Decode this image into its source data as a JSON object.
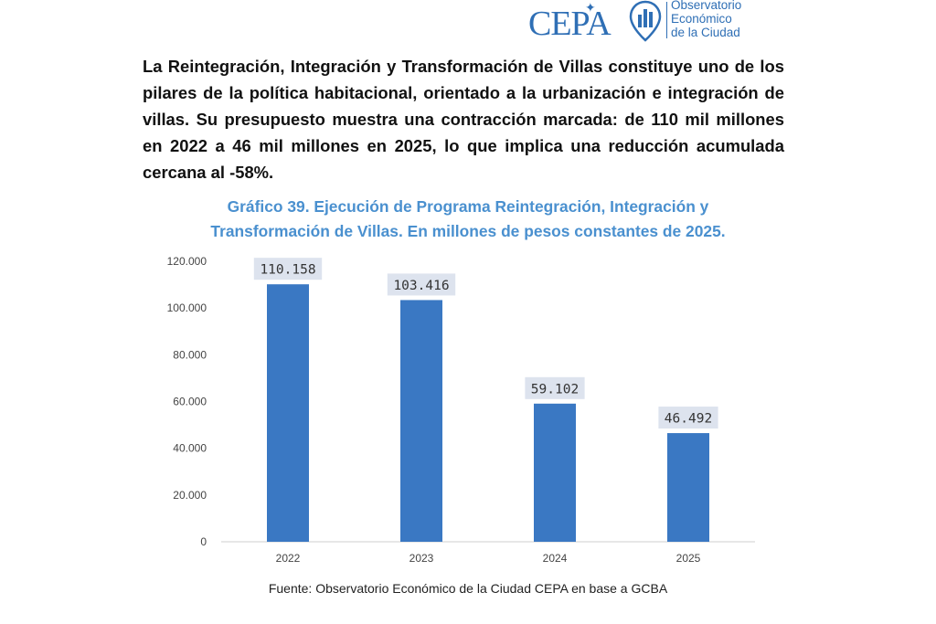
{
  "header": {
    "cepa_logo": "CEPA",
    "observatorio_logo_lines": [
      "Observatorio",
      "Económico",
      "de la Ciudad"
    ]
  },
  "intro_text": "La Reintegración, Integración y Transformación de Villas constituye uno de los pilares de la política habitacional, orientado a la urbanización e integración de villas. Su presupuesto muestra una contracción marcada: de 110 mil millones en 2022 a 46 mil millones en 2025, lo que implica una reducción acumulada cercana al -58%.",
  "chart_title_line1": "Gráfico 39. Ejecución de Programa Reintegración, Integración y",
  "chart_title_line2": "Transformación de Villas. En millones de pesos constantes de 2025.",
  "source": "Fuente: Observatorio Económico de la Ciudad CEPA en base a GCBA",
  "colors": {
    "bar": "#3a78c3",
    "title": "#4a90cf",
    "label_bg": "#dde3ee"
  },
  "chart_data": {
    "type": "bar",
    "categories": [
      "2022",
      "2023",
      "2024",
      "2025"
    ],
    "values": [
      110158,
      103416,
      59102,
      46492
    ],
    "value_labels": [
      "110.158",
      "103.416",
      "59.102",
      "46.492"
    ],
    "ylim": [
      0,
      120000
    ],
    "yticks": [
      0,
      20000,
      40000,
      60000,
      80000,
      100000,
      120000
    ],
    "ytick_labels": [
      "0",
      "20.000",
      "40.000",
      "60.000",
      "80.000",
      "100.000",
      "120.000"
    ],
    "grid": false,
    "legend": "none"
  }
}
